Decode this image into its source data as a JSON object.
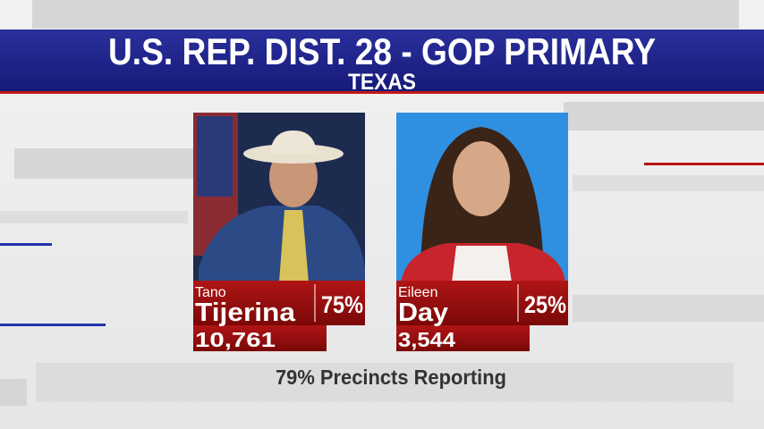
{
  "header": {
    "title": "U.S. REP. DIST. 28 - GOP PRIMARY",
    "subtitle": "TEXAS"
  },
  "candidates": [
    {
      "first_name": "Tano",
      "last_name": "Tijerina",
      "percent": "75%",
      "votes": "10,761"
    },
    {
      "first_name": "Eileen",
      "last_name": "Day",
      "percent": "25%",
      "votes": "3,544"
    }
  ],
  "footer": "79% Precincts Reporting"
}
